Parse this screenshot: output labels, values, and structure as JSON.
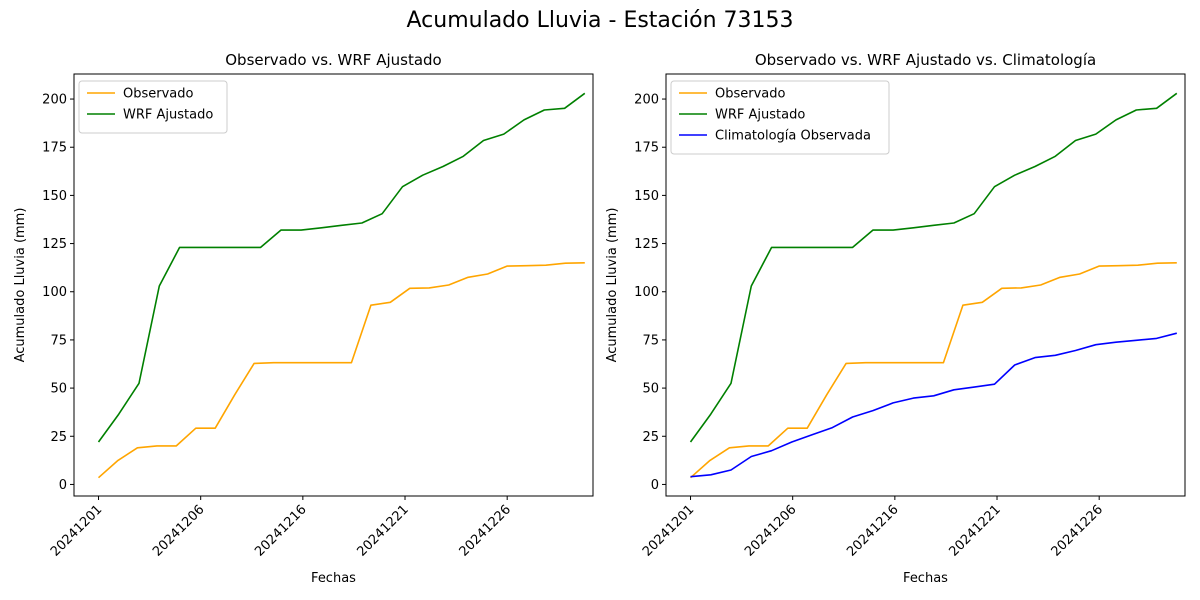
{
  "suptitle": "Acumulado Lluvia - Estación 73153",
  "colors": {
    "observado": "#ffa500",
    "wrf": "#008000",
    "climatologia": "#0000ff"
  },
  "chart_data": [
    {
      "type": "line",
      "title": "Observado vs. WRF Ajustado",
      "xlabel": "Fechas",
      "ylabel": "Acumulado Lluvia (mm)",
      "x_tick_labels": [
        "20241201",
        "20241206",
        "20241216",
        "20241221",
        "20241226"
      ],
      "y_ticks": [
        0,
        25,
        50,
        75,
        100,
        125,
        150,
        175,
        200
      ],
      "ylim": [
        -6,
        213
      ],
      "legend_position": "upper-left",
      "series": [
        {
          "name": "Observado",
          "color": "#ffa500",
          "values": [
            3.5,
            12.5,
            19,
            20,
            20,
            29.2,
            29.2,
            46.5,
            62.8,
            63.2,
            63.2,
            63.2,
            63.2,
            63.2,
            93,
            94.5,
            101.8,
            102,
            103.5,
            107.5,
            109.2,
            113.3,
            113.5,
            113.8,
            114.8,
            115
          ]
        },
        {
          "name": "WRF Ajustado",
          "color": "#008000",
          "values": [
            22,
            36.5,
            52.5,
            103,
            123,
            123,
            123,
            123,
            123,
            132,
            132,
            133.2,
            134.5,
            135.7,
            140.5,
            154.5,
            160.5,
            165,
            170.3,
            178.5,
            181.8,
            189.2,
            194.3,
            195.2,
            203
          ]
        }
      ]
    },
    {
      "type": "line",
      "title": "Observado vs. WRF Ajustado vs. Climatología",
      "xlabel": "Fechas",
      "ylabel": "Acumulado Lluvia (mm)",
      "x_tick_labels": [
        "20241201",
        "20241206",
        "20241216",
        "20241221",
        "20241226"
      ],
      "y_ticks": [
        0,
        25,
        50,
        75,
        100,
        125,
        150,
        175,
        200
      ],
      "ylim": [
        -6,
        213
      ],
      "legend_position": "upper-left",
      "series": [
        {
          "name": "Observado",
          "color": "#ffa500",
          "values": [
            3.5,
            12.5,
            19,
            20,
            20,
            29.2,
            29.2,
            46.5,
            62.8,
            63.2,
            63.2,
            63.2,
            63.2,
            63.2,
            93,
            94.5,
            101.8,
            102,
            103.5,
            107.5,
            109.2,
            113.3,
            113.5,
            113.8,
            114.8,
            115
          ]
        },
        {
          "name": "WRF Ajustado",
          "color": "#008000",
          "values": [
            22,
            36.5,
            52.5,
            103,
            123,
            123,
            123,
            123,
            123,
            132,
            132,
            133.2,
            134.5,
            135.7,
            140.5,
            154.5,
            160.5,
            165,
            170.3,
            178.5,
            181.8,
            189.2,
            194.3,
            195.2,
            203
          ]
        },
        {
          "name": "Climatología Observada",
          "color": "#0000ff",
          "values": [
            4,
            5,
            7.5,
            14.5,
            17.5,
            22,
            25.8,
            29.5,
            35,
            38.3,
            42.3,
            44.8,
            46,
            49.1,
            50.5,
            52,
            62,
            65.8,
            67,
            69.5,
            72.5,
            73.8,
            74.8,
            75.8,
            78.5
          ]
        }
      ]
    }
  ]
}
